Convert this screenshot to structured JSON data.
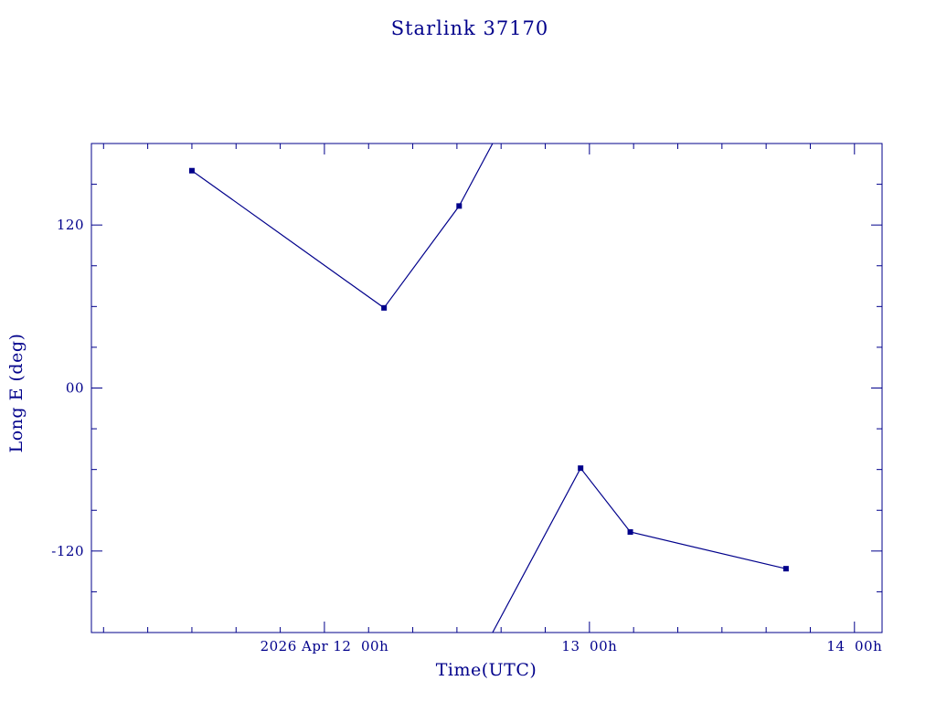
{
  "chart_data": {
    "type": "line",
    "title": "Starlink 37170",
    "xlabel": "Time(UTC)",
    "ylabel": "Long E (deg)",
    "color": "#00008b",
    "background": "#ffffff",
    "x_unit": "hours since 2026 Apr 11 00:00 UTC",
    "xlim": [
      2.9,
      74.5
    ],
    "ylim": [
      -180,
      180
    ],
    "wrap_degrees": true,
    "x_major_ticks": [
      {
        "t": 24,
        "label": "2026 Apr 12  00h"
      },
      {
        "t": 48,
        "label": "13  00h"
      },
      {
        "t": 72,
        "label": "14  00h"
      }
    ],
    "x_minor_step": 4,
    "y_major_ticks": [
      {
        "v": 120,
        "label": "120"
      },
      {
        "v": 0,
        "label": "00"
      },
      {
        "v": -120,
        "label": "-120"
      }
    ],
    "y_minor_step": 30,
    "points": [
      {
        "t": 12.0,
        "deg": 160
      },
      {
        "t": 29.4,
        "deg": 59
      },
      {
        "t": 36.2,
        "deg": 134
      },
      {
        "t": 47.2,
        "deg": -59
      },
      {
        "t": 51.7,
        "deg": -106
      },
      {
        "t": 65.8,
        "deg": -133
      }
    ],
    "marker": "filled-square",
    "legend": "none",
    "grid": "off"
  }
}
